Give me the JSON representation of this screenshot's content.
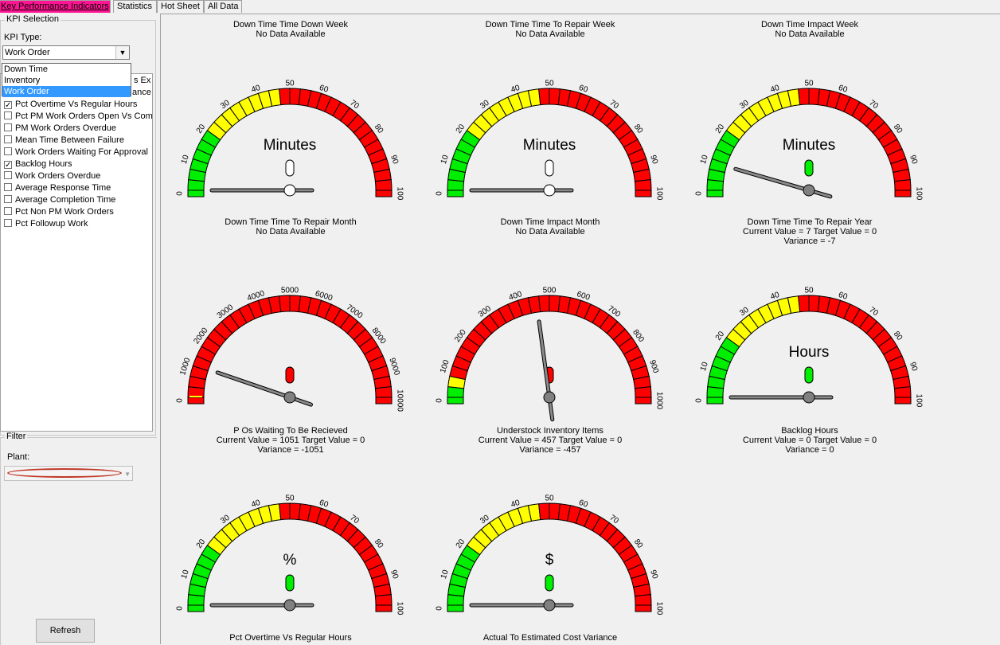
{
  "tabs": [
    "Key Performance Indicators",
    "Statistics",
    "Hot Sheet",
    "All Data"
  ],
  "kpi_selection": {
    "title": "KPI Selection",
    "kpi_type_label": "KPI Type:",
    "kpi_type_value": "Work Order",
    "dropdown_options": [
      "Down Time",
      "Inventory",
      "Work Order"
    ],
    "list_clipped_1": "s Ex",
    "list_clipped_2": "ance",
    "items": [
      {
        "label": "Pct Overtime Vs Regular Hours",
        "checked": true
      },
      {
        "label": "Pct PM Work Orders Open Vs Com",
        "checked": false
      },
      {
        "label": "PM Work Orders Overdue",
        "checked": false
      },
      {
        "label": "Mean Time Between Failure",
        "checked": false
      },
      {
        "label": "Work Orders Waiting For Approval",
        "checked": false
      },
      {
        "label": "Backlog Hours",
        "checked": true
      },
      {
        "label": "Work Orders Overdue",
        "checked": false
      },
      {
        "label": "Average Response Time",
        "checked": false
      },
      {
        "label": "Average Completion Time",
        "checked": false
      },
      {
        "label": "Pct Non PM Work Orders",
        "checked": false
      },
      {
        "label": "Pct Followup Work",
        "checked": false
      }
    ]
  },
  "filter": {
    "title": "Filter",
    "plant_label": "Plant:",
    "plant_value": ""
  },
  "refresh_label": "Refresh",
  "colors": {
    "green": "#00ee00",
    "yellow": "#ffff00",
    "red": "#ff0000",
    "accent_tab": "#ff1493"
  },
  "gauges": [
    {
      "title": "Down Time Time Down Week",
      "lines": [
        "No Data Available"
      ],
      "ticks": [
        "0",
        "10",
        "20",
        "30",
        "40",
        "50",
        "60",
        "70",
        "80",
        "90",
        "100"
      ],
      "zones": [
        "g",
        "g",
        "g",
        "g",
        "g",
        "g",
        "y",
        "y",
        "y",
        "y",
        "y",
        "y",
        "y",
        "y",
        "r",
        "r",
        "r",
        "r",
        "r",
        "r",
        "r",
        "r",
        "r",
        "r",
        "r",
        "r",
        "r",
        "r",
        "r",
        "r"
      ],
      "unit": "Minutes",
      "status": "none",
      "value_fraction": 0.5,
      "needle_visible": false
    },
    {
      "title": "Down Time Time To Repair Week",
      "lines": [
        "No Data Available"
      ],
      "ticks": [
        "0",
        "10",
        "20",
        "30",
        "40",
        "50",
        "60",
        "70",
        "80",
        "90",
        "100"
      ],
      "zones": [
        "g",
        "g",
        "g",
        "g",
        "g",
        "g",
        "y",
        "y",
        "y",
        "y",
        "y",
        "y",
        "y",
        "y",
        "r",
        "r",
        "r",
        "r",
        "r",
        "r",
        "r",
        "r",
        "r",
        "r",
        "r",
        "r",
        "r",
        "r",
        "r",
        "r"
      ],
      "unit": "Minutes",
      "status": "none",
      "value_fraction": 0.5,
      "needle_visible": false
    },
    {
      "title": "Down Time Impact Week",
      "lines": [
        "No Data Available"
      ],
      "ticks": [
        "0",
        "10",
        "20",
        "30",
        "40",
        "50",
        "60",
        "70",
        "80",
        "90",
        "100"
      ],
      "zones": [
        "g",
        "g",
        "g",
        "g",
        "g",
        "g",
        "y",
        "y",
        "y",
        "y",
        "y",
        "y",
        "y",
        "y",
        "r",
        "r",
        "r",
        "r",
        "r",
        "r",
        "r",
        "r",
        "r",
        "r",
        "r",
        "r",
        "r",
        "r",
        "r",
        "r"
      ],
      "unit": "Minutes",
      "status": "green",
      "value_fraction": 0.09,
      "needle_visible": true
    },
    {
      "title": "Down Time Time To Repair Month",
      "lines": [
        "No Data Available"
      ],
      "ticks": [],
      "zones": [],
      "unit": "",
      "status": "none",
      "value_fraction": 0.5,
      "needle_visible": false,
      "gauge_visible": false
    },
    {
      "title": "Down Time Impact Month",
      "lines": [
        "No Data Available"
      ],
      "ticks": [],
      "zones": [],
      "unit": "",
      "status": "none",
      "value_fraction": 0.5,
      "needle_visible": false,
      "gauge_visible": false
    },
    {
      "title": "Down Time Time To Repair Year",
      "lines": [
        "Current Value = 7  Target Value = 0",
        "Variance = -7"
      ],
      "ticks": [],
      "zones": [],
      "unit": "",
      "status": "none",
      "value_fraction": 0.5,
      "needle_visible": false,
      "gauge_visible": false
    },
    {
      "title": "P Os Waiting To Be Recieved",
      "lines": [
        "Current Value = 1051  Target Value = 0",
        "Variance = -1051"
      ],
      "ticks": [
        "0",
        "1000",
        "2000",
        "3000",
        "4000",
        "5000",
        "6000",
        "7000",
        "8000",
        "9000",
        "10000"
      ],
      "zones": [
        "o",
        "r",
        "r",
        "r",
        "r",
        "r",
        "r",
        "r",
        "r",
        "r",
        "r",
        "r",
        "r",
        "r",
        "r",
        "r",
        "r",
        "r",
        "r",
        "r",
        "r",
        "r",
        "r",
        "r",
        "r",
        "r",
        "r",
        "r",
        "r",
        "r"
      ],
      "unit": "",
      "status": "red",
      "value_fraction": 0.1051,
      "needle_visible": true
    },
    {
      "title": "Understock Inventory Items",
      "lines": [
        "Current Value = 457  Target Value = 0",
        "Variance = -457"
      ],
      "ticks": [
        "0",
        "100",
        "200",
        "300",
        "400",
        "500",
        "600",
        "700",
        "800",
        "900",
        "1000"
      ],
      "zones": [
        "g",
        "y",
        "r",
        "r",
        "r",
        "r",
        "r",
        "r",
        "r",
        "r",
        "r",
        "r",
        "r",
        "r",
        "r",
        "r",
        "r",
        "r",
        "r",
        "r",
        "r",
        "r",
        "r",
        "r",
        "r",
        "r",
        "r",
        "r",
        "r",
        "r"
      ],
      "unit": "",
      "status": "red",
      "value_fraction": 0.457,
      "needle_visible": true
    },
    {
      "title": "Backlog Hours",
      "lines": [
        "Current Value = 0  Target Value = 0",
        "Variance = 0"
      ],
      "ticks": [
        "0",
        "10",
        "20",
        "30",
        "40",
        "50",
        "60",
        "70",
        "80",
        "90",
        "100"
      ],
      "zones": [
        "g",
        "g",
        "g",
        "g",
        "g",
        "g",
        "y",
        "y",
        "y",
        "y",
        "y",
        "y",
        "y",
        "y",
        "r",
        "r",
        "r",
        "r",
        "r",
        "r",
        "r",
        "r",
        "r",
        "r",
        "r",
        "r",
        "r",
        "r",
        "r",
        "r"
      ],
      "unit": "Hours",
      "status": "green",
      "value_fraction": 0.5,
      "needle_visible": false
    },
    {
      "title": "Pct Overtime Vs Regular Hours",
      "lines": [],
      "ticks": [
        "0",
        "10",
        "20",
        "30",
        "40",
        "50",
        "60",
        "70",
        "80",
        "90",
        "100"
      ],
      "zones": [
        "g",
        "g",
        "g",
        "g",
        "g",
        "g",
        "y",
        "y",
        "y",
        "y",
        "y",
        "y",
        "y",
        "y",
        "r",
        "r",
        "r",
        "r",
        "r",
        "r",
        "r",
        "r",
        "r",
        "r",
        "r",
        "r",
        "r",
        "r",
        "r",
        "r"
      ],
      "unit": "%",
      "status": "green",
      "value_fraction": 0.5,
      "needle_visible": false
    },
    {
      "title": "Actual To Estimated Cost Variance",
      "lines": [],
      "ticks": [
        "0",
        "10",
        "20",
        "30",
        "40",
        "50",
        "60",
        "70",
        "80",
        "90",
        "100"
      ],
      "zones": [
        "g",
        "g",
        "g",
        "g",
        "g",
        "g",
        "y",
        "y",
        "y",
        "y",
        "y",
        "y",
        "y",
        "y",
        "r",
        "r",
        "r",
        "r",
        "r",
        "r",
        "r",
        "r",
        "r",
        "r",
        "r",
        "r",
        "r",
        "r",
        "r",
        "r"
      ],
      "unit": "$",
      "status": "green",
      "value_fraction": 0.5,
      "needle_visible": false
    }
  ]
}
